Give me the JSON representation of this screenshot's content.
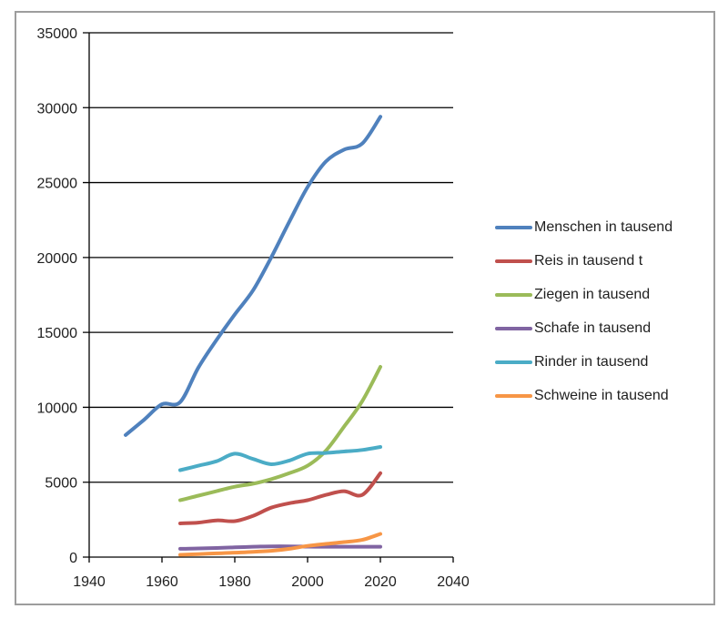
{
  "chart_data": {
    "type": "line",
    "title": "",
    "xlabel": "",
    "ylabel": "",
    "xlim": [
      1940,
      2040
    ],
    "ylim": [
      0,
      35000
    ],
    "xticks": [
      1940,
      1960,
      1980,
      2000,
      2020,
      2040
    ],
    "yticks": [
      0,
      5000,
      10000,
      15000,
      20000,
      25000,
      30000,
      35000
    ],
    "grid": "horizontal",
    "grid_color": "#000000",
    "axis_color": "#000000",
    "text_color": "#1f1f1f",
    "frame_border_color": "#9d9d9d",
    "legend_position": "right",
    "line_style": "smooth",
    "series": [
      {
        "name": "Menschen in tausend",
        "color": "#4F81BD",
        "x": [
          1950,
          1955,
          1960,
          1965,
          1970,
          1975,
          1980,
          1985,
          1990,
          1995,
          2000,
          2005,
          2010,
          2015,
          2020
        ],
        "values": [
          8150,
          9150,
          10200,
          10350,
          12650,
          14500,
          16200,
          17800,
          20000,
          22400,
          24700,
          26400,
          27200,
          27600,
          29400
        ]
      },
      {
        "name": "Reis in tausend t",
        "color": "#C0504D",
        "x": [
          1965,
          1970,
          1975,
          1980,
          1985,
          1990,
          1995,
          2000,
          2005,
          2010,
          2015,
          2020
        ],
        "values": [
          2250,
          2300,
          2450,
          2400,
          2750,
          3300,
          3600,
          3800,
          4150,
          4400,
          4150,
          5600
        ]
      },
      {
        "name": "Ziegen in tausend",
        "color": "#9BBB59",
        "x": [
          1965,
          1970,
          1975,
          1980,
          1985,
          1990,
          1995,
          2000,
          2005,
          2010,
          2015,
          2020
        ],
        "values": [
          3800,
          4100,
          4400,
          4700,
          4900,
          5200,
          5600,
          6100,
          7100,
          8700,
          10400,
          12700
        ]
      },
      {
        "name": "Schafe in tausend",
        "color": "#8064A2",
        "x": [
          1965,
          1970,
          1975,
          1980,
          1985,
          1990,
          1995,
          2000,
          2005,
          2010,
          2015,
          2020
        ],
        "values": [
          550,
          580,
          610,
          650,
          690,
          720,
          720,
          700,
          690,
          690,
          690,
          690
        ]
      },
      {
        "name": "Rinder in tausend",
        "color": "#4BACC6",
        "x": [
          1965,
          1970,
          1975,
          1980,
          1985,
          1990,
          1995,
          2000,
          2005,
          2010,
          2015,
          2020
        ],
        "values": [
          5800,
          6100,
          6400,
          6900,
          6550,
          6200,
          6450,
          6900,
          6950,
          7050,
          7150,
          7350
        ]
      },
      {
        "name": "Schweine in tausend",
        "color": "#F79646",
        "x": [
          1965,
          1970,
          1975,
          1980,
          1985,
          1990,
          1995,
          2000,
          2005,
          2010,
          2015,
          2020
        ],
        "values": [
          150,
          200,
          250,
          300,
          350,
          420,
          550,
          750,
          880,
          1000,
          1150,
          1550
        ]
      }
    ]
  }
}
